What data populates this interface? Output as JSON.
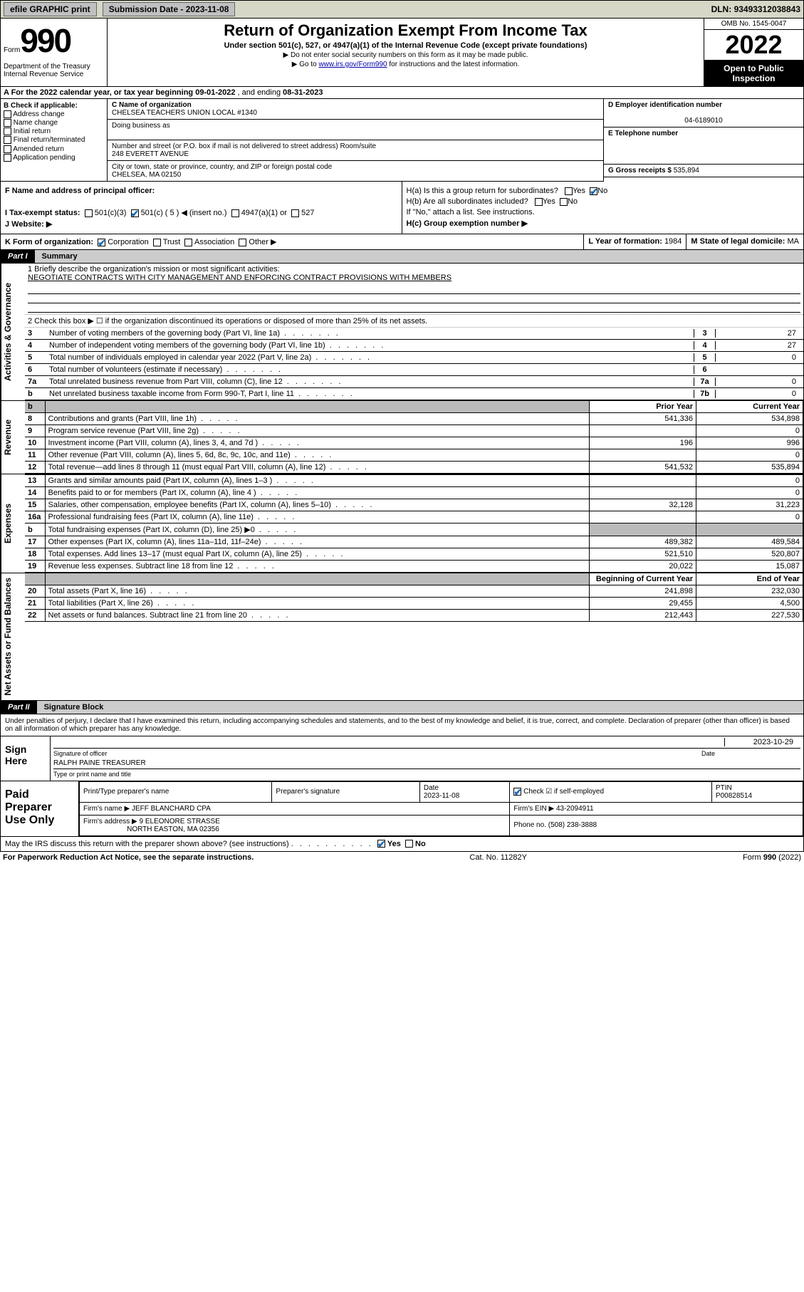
{
  "topbar": {
    "efile": "efile GRAPHIC print",
    "submission_label": "Submission Date - ",
    "submission_date": "2023-11-08",
    "dln_label": "DLN: ",
    "dln": "93493312038843"
  },
  "header": {
    "form_word": "Form",
    "form_no": "990",
    "title": "Return of Organization Exempt From Income Tax",
    "subtitle": "Under section 501(c), 527, or 4947(a)(1) of the Internal Revenue Code (except private foundations)",
    "note1": "▶ Do not enter social security numbers on this form as it may be made public.",
    "note2_pre": "▶ Go to ",
    "note2_link": "www.irs.gov/Form990",
    "note2_post": " for instructions and the latest information.",
    "dept": "Department of the Treasury\nInternal Revenue Service",
    "omb": "OMB No. 1545-0047",
    "year": "2022",
    "open": "Open to Public Inspection"
  },
  "period": {
    "text_a": "A For the 2022 calendar year, or tax year beginning ",
    "begin": "09-01-2022",
    "text_b": " , and ending ",
    "end": "08-31-2023"
  },
  "box_b": {
    "label": "B Check if applicable:",
    "opts": [
      "Address change",
      "Name change",
      "Initial return",
      "Final return/terminated",
      "Amended return",
      "Application pending"
    ]
  },
  "box_c": {
    "name_label": "C Name of organization",
    "name": "CHELSEA TEACHERS UNION LOCAL #1340",
    "dba_label": "Doing business as",
    "dba": "",
    "addr_label": "Number and street (or P.O. box if mail is not delivered to street address)    Room/suite",
    "addr": "248 EVERETT AVENUE",
    "city_label": "City or town, state or province, country, and ZIP or foreign postal code",
    "city": "CHELSEA, MA  02150"
  },
  "box_d": {
    "ein_label": "D Employer identification number",
    "ein": "04-6189010",
    "tel_label": "E Telephone number",
    "tel": "",
    "gross_label": "G Gross receipts $ ",
    "gross": "535,894"
  },
  "officer": {
    "f_label": "F Name and address of principal officer:",
    "ha": "H(a)  Is this a group return for subordinates?",
    "ha_yes": "Yes",
    "ha_no": "No",
    "hb": "H(b)  Are all subordinates included?",
    "hb_yes": "Yes",
    "hb_no": "No",
    "hb_note": "If \"No,\" attach a list. See instructions.",
    "hc": "H(c)  Group exemption number ▶"
  },
  "status": {
    "i_label": "I  Tax-exempt status:",
    "opts": [
      "501(c)(3)",
      "501(c) ( 5 ) ◀ (insert no.)",
      "4947(a)(1) or",
      "527"
    ],
    "checked_index": 1,
    "j_label": "J  Website: ▶"
  },
  "korg": {
    "k_label": "K Form of organization:",
    "opts": [
      "Corporation",
      "Trust",
      "Association",
      "Other ▶"
    ],
    "checked_index": 0,
    "l_label": "L Year of formation: ",
    "l_val": "1984",
    "m_label": "M State of legal domicile: ",
    "m_val": "MA"
  },
  "part1": {
    "pn": "Part I",
    "pt": "Summary"
  },
  "summary": {
    "q1_label": "1  Briefly describe the organization's mission or most significant activities:",
    "q1_val": "NEGOTIATE CONTRACTS WITH CITY MANAGEMENT AND ENFORCING CONTRACT PROVISIONS WITH MEMBERS",
    "q2": "2  Check this box ▶ ☐  if the organization discontinued its operations or disposed of more than 25% of its net assets.",
    "rows_ag": [
      {
        "n": "3",
        "d": "Number of voting members of the governing body (Part VI, line 1a)",
        "box": "3",
        "v": "27"
      },
      {
        "n": "4",
        "d": "Number of independent voting members of the governing body (Part VI, line 1b)",
        "box": "4",
        "v": "27"
      },
      {
        "n": "5",
        "d": "Total number of individuals employed in calendar year 2022 (Part V, line 2a)",
        "box": "5",
        "v": "0"
      },
      {
        "n": "6",
        "d": "Total number of volunteers (estimate if necessary)",
        "box": "6",
        "v": ""
      },
      {
        "n": "7a",
        "d": "Total unrelated business revenue from Part VIII, column (C), line 12",
        "box": "7a",
        "v": "0"
      },
      {
        "n": "b",
        "d": "Net unrelated business taxable income from Form 990-T, Part I, line 11",
        "box": "7b",
        "v": "0"
      }
    ],
    "col_prior": "Prior Year",
    "col_curr": "Current Year",
    "revenue": [
      {
        "n": "8",
        "d": "Contributions and grants (Part VIII, line 1h)",
        "p": "541,336",
        "c": "534,898"
      },
      {
        "n": "9",
        "d": "Program service revenue (Part VIII, line 2g)",
        "p": "",
        "c": "0"
      },
      {
        "n": "10",
        "d": "Investment income (Part VIII, column (A), lines 3, 4, and 7d )",
        "p": "196",
        "c": "996"
      },
      {
        "n": "11",
        "d": "Other revenue (Part VIII, column (A), lines 5, 6d, 8c, 9c, 10c, and 11e)",
        "p": "",
        "c": "0"
      },
      {
        "n": "12",
        "d": "Total revenue—add lines 8 through 11 (must equal Part VIII, column (A), line 12)",
        "p": "541,532",
        "c": "535,894"
      }
    ],
    "expenses": [
      {
        "n": "13",
        "d": "Grants and similar amounts paid (Part IX, column (A), lines 1–3 )",
        "p": "",
        "c": "0"
      },
      {
        "n": "14",
        "d": "Benefits paid to or for members (Part IX, column (A), line 4 )",
        "p": "",
        "c": "0"
      },
      {
        "n": "15",
        "d": "Salaries, other compensation, employee benefits (Part IX, column (A), lines 5–10)",
        "p": "32,128",
        "c": "31,223"
      },
      {
        "n": "16a",
        "d": "Professional fundraising fees (Part IX, column (A), line 11e)",
        "p": "",
        "c": "0"
      },
      {
        "n": "b",
        "d": "Total fundraising expenses (Part IX, column (D), line 25) ▶0",
        "p": "grey",
        "c": "grey"
      },
      {
        "n": "17",
        "d": "Other expenses (Part IX, column (A), lines 11a–11d, 11f–24e)",
        "p": "489,382",
        "c": "489,584"
      },
      {
        "n": "18",
        "d": "Total expenses. Add lines 13–17 (must equal Part IX, column (A), line 25)",
        "p": "521,510",
        "c": "520,807"
      },
      {
        "n": "19",
        "d": "Revenue less expenses. Subtract line 18 from line 12",
        "p": "20,022",
        "c": "15,087"
      }
    ],
    "col_begin": "Beginning of Current Year",
    "col_end": "End of Year",
    "netassets": [
      {
        "n": "20",
        "d": "Total assets (Part X, line 16)",
        "p": "241,898",
        "c": "232,030"
      },
      {
        "n": "21",
        "d": "Total liabilities (Part X, line 26)",
        "p": "29,455",
        "c": "4,500"
      },
      {
        "n": "22",
        "d": "Net assets or fund balances. Subtract line 21 from line 20",
        "p": "212,443",
        "c": "227,530"
      }
    ],
    "vlabels": {
      "ag": "Activities & Governance",
      "rev": "Revenue",
      "exp": "Expenses",
      "na": "Net Assets or Fund Balances"
    }
  },
  "part2": {
    "pn": "Part II",
    "pt": "Signature Block"
  },
  "sig": {
    "decl": "Under penalties of perjury, I declare that I have examined this return, including accompanying schedules and statements, and to the best of my knowledge and belief, it is true, correct, and complete. Declaration of preparer (other than officer) is based on all information of which preparer has any knowledge.",
    "sign_here": "Sign Here",
    "sig_officer": "Signature of officer",
    "date_label": "Date",
    "sig_date": "2023-10-29",
    "name_title": "RALPH PAINE  TREASURER",
    "type_label": "Type or print name and title"
  },
  "prep": {
    "label": "Paid Preparer Use Only",
    "h_name": "Print/Type preparer's name",
    "h_sig": "Preparer's signature",
    "h_date": "Date",
    "date": "2023-11-08",
    "check_label": "Check ☑ if self-employed",
    "ptin_label": "PTIN",
    "ptin": "P00828514",
    "firm_name_label": "Firm's name    ▶ ",
    "firm_name": "JEFF BLANCHARD CPA",
    "firm_ein_label": "Firm's EIN ▶ ",
    "firm_ein": "43-2094911",
    "firm_addr_label": "Firm's address ▶ ",
    "firm_addr1": "9 ELEONORE STRASSE",
    "firm_addr2": "NORTH EASTON, MA  02356",
    "phone_label": "Phone no. ",
    "phone": "(508) 238-3888"
  },
  "discuss": {
    "q": "May the IRS discuss this return with the preparer shown above? (see instructions)",
    "yes": "Yes",
    "no": "No"
  },
  "footer": {
    "pra": "For Paperwork Reduction Act Notice, see the separate instructions.",
    "cat": "Cat. No. 11282Y",
    "form": "Form 990 (2022)"
  },
  "colors": {
    "topbar_bg": "#d7d7c7",
    "check_blue": "#1a6bb5",
    "link": "#0000aa",
    "black": "#000000",
    "grey_hdr": "#cccccc"
  }
}
